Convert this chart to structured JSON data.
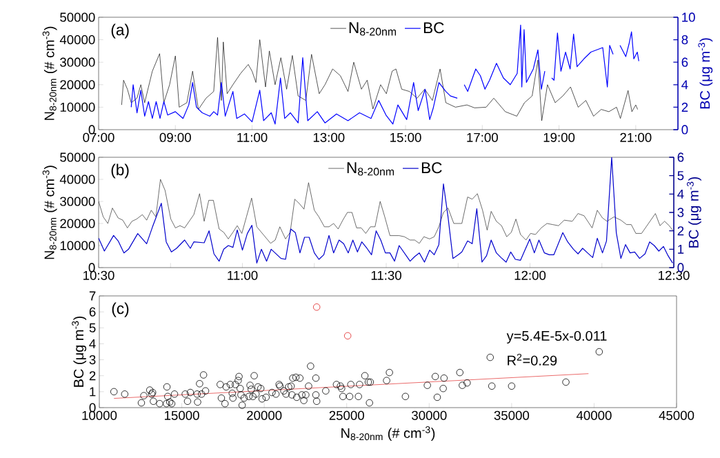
{
  "chart_data": [
    {
      "type": "line",
      "ylabel": "N$_{8-20nm}$ (# cm$^{-3}$)",
      "y2label": "BC (μg m$^{-3}$)",
      "annotations": [
        "(a)"
      ],
      "legend": "top",
      "xlim": [
        7,
        22.1
      ],
      "xticks": [
        {
          "value": 7,
          "label": "07:00"
        },
        {
          "value": 9,
          "label": "09:00"
        },
        {
          "value": 11,
          "label": "11:00"
        },
        {
          "value": 13,
          "label": "13:00"
        },
        {
          "value": 15,
          "label": "15:00"
        },
        {
          "value": 17,
          "label": "17:00"
        },
        {
          "value": 19,
          "label": "19:00"
        },
        {
          "value": 21,
          "label": "21:00"
        }
      ],
      "ylim": [
        0,
        50000
      ],
      "yticks": [
        0,
        10000,
        20000,
        30000,
        40000,
        50000
      ],
      "y2lim": [
        0,
        10
      ],
      "y2ticks": [
        0,
        2,
        4,
        6,
        8,
        10
      ],
      "series": [
        {
          "name": "N$_{8-20nm}$",
          "color": "#000000",
          "x": [
            7.6,
            7.65,
            7.75,
            7.85,
            8.0,
            8.1,
            8.2,
            8.4,
            8.59,
            8.7,
            8.85,
            9.0,
            9.1,
            9.3,
            9.45,
            9.6,
            9.8,
            10.0,
            10.1,
            10.2,
            10.25,
            10.35,
            10.5,
            10.7,
            10.9,
            11.0,
            11.1,
            11.2,
            11.35,
            11.45,
            11.6,
            11.75,
            11.9,
            12.05,
            12.2,
            12.4,
            12.55,
            12.75,
            12.9,
            13.1,
            13.3,
            13.5,
            13.65,
            13.85,
            14.0,
            14.15,
            14.35,
            14.5,
            14.65,
            14.75,
            14.9,
            15.1,
            15.3,
            15.5,
            15.7,
            15.9,
            16.05,
            16.3,
            16.6,
            16.8,
            17.1,
            17.3,
            17.6,
            17.9,
            18.1,
            18.3,
            18.45,
            18.55,
            18.7,
            18.9,
            19.1,
            19.3,
            19.5,
            19.7,
            19.9,
            20.1,
            20.3,
            20.5,
            20.6,
            20.8,
            20.9,
            21.0,
            21.05
          ],
          "values": [
            11000,
            22000,
            18000,
            12000,
            14000,
            20000,
            12000,
            26000,
            33800,
            12000,
            20000,
            32800,
            10000,
            12000,
            26000,
            9000,
            14000,
            17000,
            41000,
            13000,
            39000,
            16000,
            20000,
            25000,
            29000,
            26000,
            21000,
            40000,
            19000,
            35000,
            20000,
            32000,
            18000,
            33000,
            15000,
            13000,
            33500,
            16000,
            20000,
            27000,
            24000,
            17000,
            30000,
            18000,
            22000,
            9200,
            20000,
            16000,
            26000,
            27000,
            18000,
            17000,
            14000,
            18000,
            13000,
            27000,
            12000,
            10000,
            11000,
            9700,
            10000,
            14000,
            8000,
            6000,
            12000,
            15000,
            31000,
            4000,
            20000,
            12000,
            15000,
            19000,
            10000,
            13000,
            6000,
            9000,
            8000,
            10000,
            5000,
            17400,
            8000,
            11000,
            9000
          ]
        },
        {
          "name": "BC",
          "color": "#0000ff",
          "axis": "y2",
          "x": [
            7.85,
            7.9,
            8.0,
            8.1,
            8.2,
            8.3,
            8.4,
            8.5,
            8.6,
            8.7,
            8.8,
            9.0,
            9.2,
            9.35,
            9.45,
            9.55,
            9.7,
            9.9,
            10.0,
            10.1,
            10.2,
            10.3,
            10.5,
            10.6,
            10.8,
            11.0,
            11.2,
            11.3,
            11.5,
            11.6,
            11.74,
            11.85,
            12.0,
            12.2,
            12.32,
            12.45,
            12.7,
            12.9,
            13.2,
            13.5,
            13.8,
            14.1,
            14.3,
            14.49,
            14.67,
            14.8,
            15.03,
            15.21,
            15.33,
            15.51,
            15.63,
            15.72,
            15.87,
            16.05,
            16.17,
            16.35,
            16.45,
            16.53,
            16.62,
            16.83,
            16.95,
            17.07,
            17.19,
            17.37,
            17.55,
            17.73,
            17.91,
            18.0,
            18.03,
            18.09,
            18.15,
            18.33,
            18.45,
            18.54,
            18.63,
            18.72,
            18.81,
            18.87,
            18.96,
            19.05,
            19.17,
            19.29,
            19.38,
            19.47,
            19.65,
            19.83,
            20.14,
            20.26,
            20.32,
            20.41,
            20.5,
            20.59,
            20.74,
            20.83,
            20.89,
            20.95,
            21.04,
            21.08
          ],
          "values": [
            2.0,
            4.0,
            1.5,
            3.5,
            1.2,
            2.5,
            1.0,
            2.5,
            1.0,
            2.5,
            1.3,
            1.6,
            1.0,
            2.2,
            4.2,
            2.0,
            1.5,
            1.2,
            1.6,
            1.3,
            4.2,
            1.2,
            3.4,
            1.0,
            1.4,
            0.7,
            3.5,
            0.8,
            1.5,
            0.5,
            4.6,
            1.0,
            1.5,
            0.6,
            6.4,
            0.8,
            1.6,
            0.6,
            1.4,
            0.8,
            1.5,
            1.0,
            2.6,
            1.3,
            0.5,
            2.2,
            0.9,
            4.2,
            1.7,
            3.6,
            0.9,
            1.9,
            4.2,
            3.4,
            3.0,
            2.8,
            null,
            4.0,
            3.4,
            5.4,
            4.8,
            3.6,
            4.4,
            5.9,
            4.6,
            4.0,
            5.0,
            9.3,
            3.8,
            8.9,
            4.2,
            5.4,
            7.1,
            3.6,
            5.2,
            null,
            4.6,
            4.4,
            8.6,
            5.2,
            6.9,
            5.4,
            8.5,
            5.6,
            6.3,
            6.9,
            7.3,
            3.8,
            7.5,
            6.7,
            null,
            7.5,
            6.5,
            7.7,
            8.7,
            6.3,
            6.9,
            6.1
          ]
        }
      ]
    },
    {
      "type": "line",
      "ylabel": "N$_{8-20nm}$ (# cm$^{-3}$)",
      "y2label": "BC (μg m$^{-3}$)",
      "annotations": [
        "(b)"
      ],
      "legend": "top",
      "xlim": [
        10.5,
        12.5
      ],
      "xticks": [
        {
          "value": 10.5,
          "label": "10:30"
        },
        {
          "value": 10.75,
          "label": null
        },
        {
          "value": 11,
          "label": "11:00"
        },
        {
          "value": 11.25,
          "label": null
        },
        {
          "value": 11.5,
          "label": "11:30"
        },
        {
          "value": 11.75,
          "label": null
        },
        {
          "value": 12,
          "label": "12:00"
        },
        {
          "value": 12.25,
          "label": null
        },
        {
          "value": 12.5,
          "label": "12:30"
        }
      ],
      "ylim": [
        0,
        50000
      ],
      "yticks": [
        0,
        10000,
        20000,
        30000,
        40000,
        50000
      ],
      "y2lim": [
        0,
        6
      ],
      "y2ticks": [
        0,
        1,
        2,
        3,
        4,
        5,
        6
      ],
      "series": [
        {
          "name": "N$_{8-20nm}$",
          "color": "#222222",
          "x": [
            10.5,
            10.516,
            10.532,
            10.548,
            10.568,
            10.584,
            10.6,
            10.616,
            10.632,
            10.652,
            10.667,
            10.683,
            10.699,
            10.715,
            10.731,
            10.751,
            10.767,
            10.783,
            10.799,
            10.815,
            10.831,
            10.851,
            10.867,
            10.883,
            10.899,
            10.919,
            10.935,
            10.951,
            10.967,
            10.982,
            10.998,
            11.014,
            11.032,
            11.05,
            11.066,
            11.082,
            11.098,
            11.114,
            11.13,
            11.15,
            11.166,
            11.182,
            11.198,
            11.214,
            11.23,
            11.25,
            11.266,
            11.285,
            11.301,
            11.317,
            11.333,
            11.349,
            11.365,
            11.381,
            11.397,
            11.413,
            11.429,
            11.445,
            11.461,
            11.479,
            11.495,
            11.513,
            11.545,
            11.563,
            11.583,
            11.599,
            11.615,
            11.631,
            11.651,
            11.667,
            11.683,
            11.699,
            11.715,
            11.735,
            11.763,
            11.783,
            11.799,
            11.817,
            11.835,
            11.851,
            11.865,
            11.883,
            11.901,
            11.919,
            11.935,
            11.951,
            11.967,
            11.986,
            12.002,
            12.019,
            12.039,
            12.059,
            12.079,
            12.099,
            12.119,
            12.147,
            12.167,
            12.188,
            12.216,
            12.234,
            12.252,
            12.268,
            12.292,
            12.316,
            12.336,
            12.352,
            12.368,
            12.388,
            12.412,
            12.436,
            12.452,
            12.468,
            12.484,
            12.496
          ],
          "values": [
            30000,
            23000,
            20000,
            27000,
            22500,
            21500,
            18000,
            21000,
            22000,
            24000,
            21500,
            26000,
            23000,
            40000,
            35000,
            22000,
            18000,
            19000,
            18000,
            21000,
            24000,
            33500,
            21000,
            30500,
            30500,
            17500,
            16000,
            13000,
            16000,
            19000,
            15500,
            23000,
            31500,
            18500,
            16000,
            13500,
            11000,
            12500,
            18500,
            13000,
            16000,
            31000,
            29000,
            26500,
            38500,
            26000,
            23000,
            18500,
            18500,
            20000,
            17500,
            21500,
            25000,
            25000,
            18000,
            18000,
            15500,
            18500,
            18500,
            30000,
            23000,
            14500,
            14500,
            14000,
            12500,
            12500,
            11000,
            14000,
            13000,
            14000,
            18500,
            25000,
            27000,
            20000,
            20000,
            32000,
            31000,
            33500,
            26000,
            17000,
            25500,
            21000,
            19000,
            14000,
            16000,
            22000,
            15000,
            12500,
            15500,
            15000,
            18000,
            20000,
            19500,
            19000,
            21500,
            21000,
            24500,
            23500,
            18000,
            26000,
            22500,
            21000,
            23000,
            21500,
            19500,
            19500,
            15500,
            15500,
            20000,
            24500,
            19000,
            21000,
            19000,
            17000
          ]
        },
        {
          "name": "BC",
          "color": "#0000cc",
          "axis": "y2",
          "x": [
            10.5,
            10.52,
            10.552,
            10.568,
            10.588,
            10.604,
            10.636,
            10.667,
            10.687,
            10.699,
            10.718,
            10.735,
            10.753,
            10.771,
            10.799,
            10.819,
            10.831,
            10.867,
            10.884,
            10.901,
            10.919,
            10.935,
            10.951,
            10.967,
            10.982,
            11.0,
            11.017,
            11.033,
            11.05,
            11.066,
            11.084,
            11.1,
            11.134,
            11.15,
            11.168,
            11.184,
            11.2,
            11.216,
            11.232,
            11.25,
            11.266,
            11.283,
            11.301,
            11.317,
            11.336,
            11.352,
            11.368,
            11.384,
            11.4,
            11.415,
            11.433,
            11.449,
            11.465,
            11.481,
            11.497,
            11.513,
            11.529,
            11.545,
            11.583,
            11.599,
            11.615,
            11.633,
            11.651,
            11.667,
            11.683,
            11.699,
            11.715,
            11.732,
            11.751,
            11.763,
            11.783,
            11.799,
            11.815,
            11.833,
            11.849,
            11.865,
            11.883,
            11.899,
            11.917,
            11.933,
            11.949,
            11.967,
            11.999,
            12.015,
            12.031,
            12.05,
            12.067,
            12.083,
            12.114,
            12.131,
            12.151,
            12.167,
            12.183,
            12.2,
            12.218,
            12.234,
            12.252,
            12.266,
            12.284,
            12.3,
            12.316,
            12.332,
            12.348,
            12.364,
            12.381,
            12.4,
            12.416,
            12.432,
            12.448,
            12.464,
            12.48,
            12.496
          ],
          "values": [
            1.6,
            0.9,
            1.75,
            1.45,
            0.8,
            1.0,
            1.85,
            1.3,
            2.2,
            2.7,
            3.5,
            1.4,
            0.85,
            1.05,
            1.5,
            1.05,
            1.4,
            1.35,
            2.0,
            0.75,
            0.35,
            1.0,
            1.2,
            1.1,
            2.05,
            0.95,
            1.85,
            2.3,
            0.25,
            1.0,
            0.35,
            1.0,
            0.5,
            0.45,
            2.1,
            1.9,
            0.8,
            1.65,
            1.65,
            0.8,
            0.45,
            0.7,
            1.75,
            0.8,
            1.5,
            1.3,
            0.8,
            1.5,
            0.85,
            1.4,
            1.05,
            0.7,
            2.0,
            1.5,
            0.8,
            0.8,
            0.35,
            1.2,
            0.35,
            0.6,
            0.8,
            0.3,
            0.95,
            0.7,
            1.25,
            4.55,
            2.75,
            0.5,
            0.7,
            0.85,
            1.45,
            1.3,
            3.2,
            0.3,
            0.65,
            1.5,
            0.8,
            0.55,
            0.3,
            0.85,
            0.45,
            0.4,
            1.55,
            0.8,
            1.5,
            0.8,
            0.7,
            0.7,
            1.9,
            1.4,
            1.0,
            0.75,
            1.05,
            0.8,
            0.55,
            1.6,
            0.8,
            1.45,
            6.0,
            1.9,
            0.5,
            1.25,
            0.8,
            0.85,
            0.5,
            0.75,
            1.4,
            1.2,
            0.9,
            1.15,
            0.65,
            0.25
          ]
        }
      ]
    },
    {
      "type": "scatter",
      "xlabel": "N$_{8-20nm}$ (# cm$^{-3}$)",
      "ylabel": "BC (μg m$^{-3}$)",
      "annotations": [
        "(c)",
        "y=5.4E-5x-0.011",
        "R$^{2}$=0.29"
      ],
      "xlim": [
        10000,
        45000
      ],
      "xticks": [
        10000,
        15000,
        20000,
        25000,
        30000,
        35000,
        40000,
        45000
      ],
      "ylim": [
        0,
        7
      ],
      "yticks": [
        0,
        1,
        2,
        3,
        4,
        5,
        6,
        7
      ],
      "series": [
        {
          "color": "#000000",
          "marker": "circle",
          "x": [
            10887,
            11540,
            12550,
            12700,
            13060,
            13180,
            13280,
            13230,
            13660,
            14100,
            14150,
            14070,
            14270,
            14560,
            14390,
            15210,
            15350,
            15520,
            15930,
            15960,
            16080,
            16200,
            16320,
            16440,
            17330,
            17400,
            17620,
            17690,
            17940,
            18060,
            18100,
            18250,
            18420,
            18470,
            18540,
            18590,
            18660,
            18780,
            19070,
            19140,
            19210,
            19310,
            19390,
            19500,
            19620,
            19790,
            19870,
            20110,
            20470,
            20710,
            20900,
            20950,
            21190,
            21320,
            21480,
            21630,
            21680,
            21730,
            21920,
            21970,
            22160,
            22280,
            22400,
            22520,
            22690,
            22810,
            23130,
            23130,
            23180,
            23730,
            24380,
            24620,
            24690,
            24770,
            25180,
            25250,
            25710,
            25780,
            26100,
            26310,
            26380,
            26430,
            27420,
            27590,
            28560,
            29890,
            30370,
            30490,
            30850,
            30900,
            31860,
            32010,
            32300,
            33700,
            33800,
            35000,
            38290,
            40310
          ],
          "values": [
            1.0,
            0.85,
            0.3,
            0.75,
            1.1,
            0.85,
            0.4,
            0.95,
            0.25,
            1.3,
            0.7,
            0.25,
            0.35,
            0.85,
            0.25,
            0.85,
            0.4,
            0.95,
            0.85,
            0.35,
            1.5,
            0.85,
            2.05,
            1.05,
            1.45,
            0.6,
            0.25,
            1.3,
            1.45,
            0.9,
            0.6,
            1.45,
            1.7,
            1.95,
            1.2,
            0.8,
            0.15,
            0.6,
            0.7,
            1.4,
            1.15,
            0.7,
            2.0,
            0.85,
            1.3,
            1.2,
            0.55,
            0.65,
            0.95,
            0.85,
            1.45,
            1.35,
            1.05,
            0.85,
            1.3,
            1.35,
            0.8,
            1.85,
            1.9,
            0.65,
            1.85,
            0.8,
            0.45,
            0.8,
            1.35,
            2.6,
            1.85,
            0.8,
            0.4,
            1.05,
            1.45,
            1.35,
            1.2,
            0.7,
            0.7,
            1.45,
            0.7,
            1.45,
            2.0,
            1.6,
            0.3,
            1.6,
            1.7,
            2.2,
            0.7,
            1.4,
            1.95,
            0.65,
            1.2,
            1.85,
            2.2,
            1.4,
            1.55,
            3.15,
            1.35,
            1.35,
            1.6,
            3.5
          ]
        },
        {
          "color": "#e02020",
          "marker": "circle",
          "x": [
            23180,
            25060
          ],
          "values": [
            6.3,
            4.5
          ]
        },
        {
          "type": "line",
          "color": "#e02020",
          "x": [
            10887,
            39660
          ],
          "values": [
            0.58,
            2.13
          ]
        }
      ]
    }
  ]
}
